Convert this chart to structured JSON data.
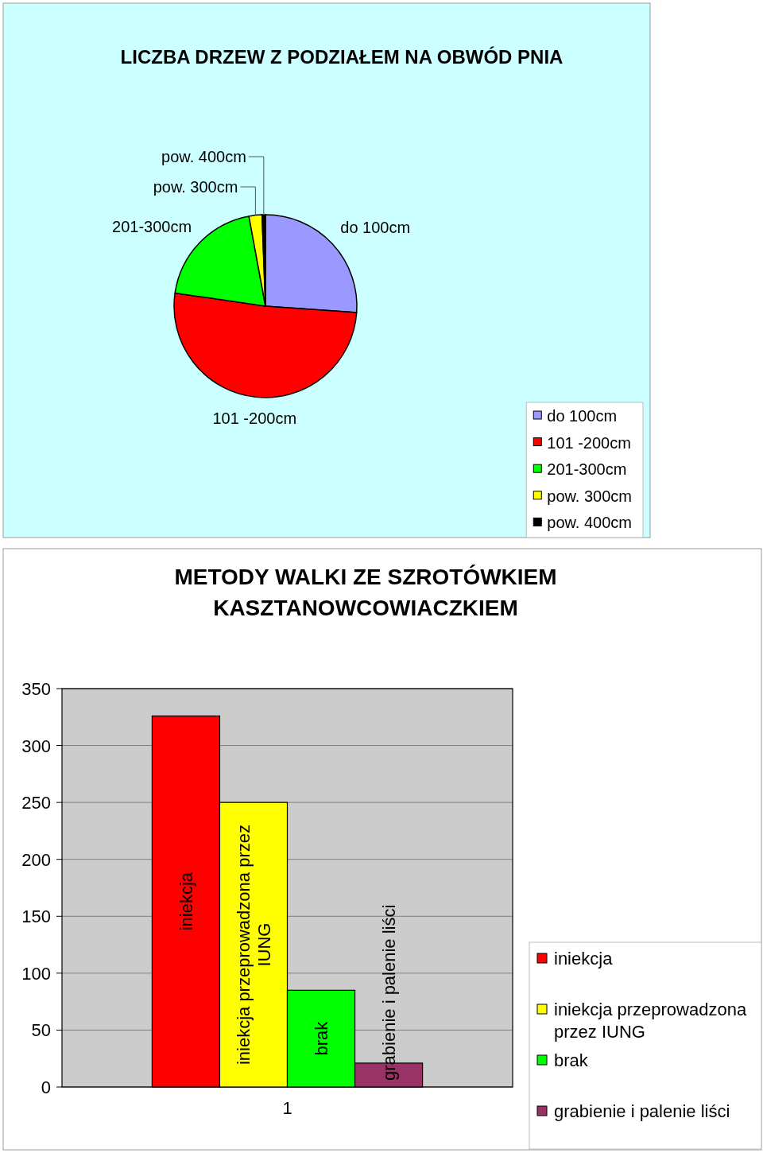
{
  "chart_data": [
    {
      "type": "pie",
      "title": "LICZBA DRZEW Z PODZIAŁEM NA OBWÓD PNIA",
      "categories": [
        "do 100cm",
        "101 -200cm",
        "201-300cm",
        "pow. 300cm",
        "pow. 400cm"
      ],
      "values": [
        26.1,
        51.2,
        19.8,
        2.3,
        0.6
      ],
      "colors": [
        "#9999ff",
        "#ff0000",
        "#00ff00",
        "#ffff00",
        "#000000"
      ],
      "legend": "bottom right"
    },
    {
      "type": "bar",
      "title": "METODY WALKI ZE SZROTÓWKIEM KASZTANOWCOWIACZKIEM",
      "categories": [
        "1"
      ],
      "series": [
        {
          "name": "iniekcja",
          "color": "#ff0000",
          "values": [
            326
          ],
          "value_labels": [
            "iniekcja"
          ]
        },
        {
          "name": "iniekcja przeprowadzona przez IUNG",
          "color": "#ffff00",
          "values": [
            250
          ],
          "value_labels": [
            "iniekcja przeprowadzona przez IUNG"
          ]
        },
        {
          "name": "brak",
          "color": "#00ff00",
          "values": [
            85
          ],
          "value_labels": [
            "brak"
          ]
        },
        {
          "name": "grabienie i palenie liści",
          "color": "#993366",
          "values": [
            21
          ],
          "value_labels": [
            "grabienie i palenie liści"
          ]
        }
      ],
      "ylim": [
        0,
        350
      ],
      "yticks": [
        0,
        50,
        100,
        150,
        200,
        250,
        300,
        350
      ],
      "grid": "y",
      "legend": "bottom right"
    }
  ]
}
